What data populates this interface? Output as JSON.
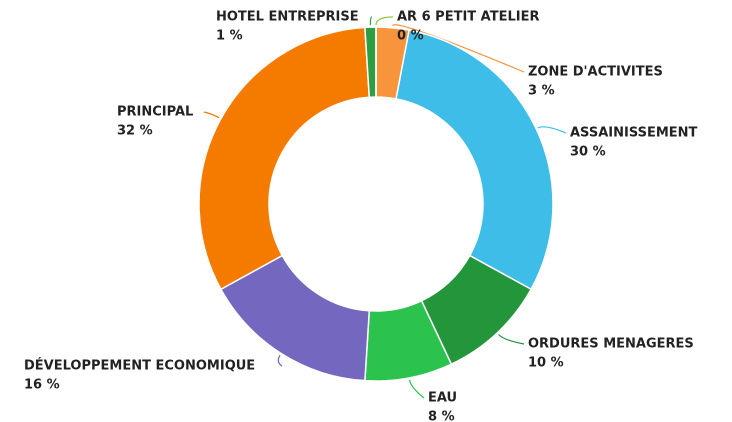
{
  "chart_data": {
    "type": "donut",
    "categories": [
      "ZONE D'ACTIVITES",
      "ASSAINISSEMENT",
      "ORDURES MENAGERES",
      "EAU",
      "DÉVELOPPEMENT ECONOMIQUE",
      "PRINCIPAL",
      "HOTEL ENTREPRISE",
      "AR 6 PETIT ATELIER"
    ],
    "values": [
      3,
      30,
      10,
      8,
      16,
      32,
      1,
      0
    ],
    "value_labels": [
      "3 %",
      "30 %",
      "10 %",
      "8 %",
      "16 %",
      "32 %",
      "1 %",
      "0 %"
    ],
    "colors": [
      "#f7943c",
      "#3dbde8",
      "#23963b",
      "#2bc24e",
      "#7367bf",
      "#f57a00",
      "#2e9e42",
      "#8fc93a"
    ]
  }
}
